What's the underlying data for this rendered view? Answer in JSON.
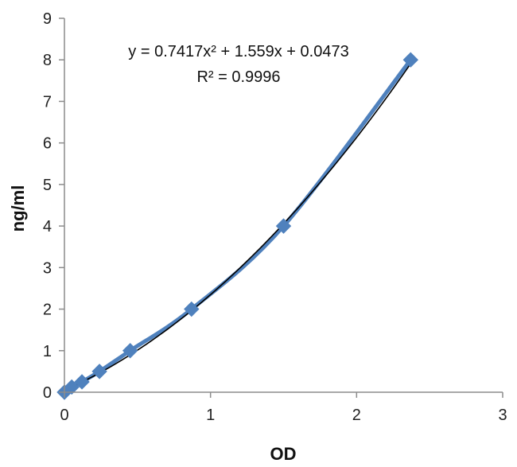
{
  "chart_data": {
    "type": "scatter",
    "xlabel": "OD",
    "ylabel": "ng/ml",
    "xlim": [
      0,
      3
    ],
    "ylim": [
      0,
      9
    ],
    "xticks": [
      0,
      1,
      2,
      3
    ],
    "yticks": [
      0,
      1,
      2,
      3,
      4,
      5,
      6,
      7,
      8,
      9
    ],
    "grid": false,
    "legend": "none",
    "series": [
      {
        "color": "#4F81BD",
        "marker": "diamond",
        "x": [
          0.0,
          0.05,
          0.12,
          0.24,
          0.45,
          0.87,
          1.5,
          2.37
        ],
        "y": [
          0.0,
          0.125,
          0.25,
          0.5,
          1.0,
          2.0,
          4.0,
          8.0
        ]
      }
    ],
    "trendline": {
      "type": "polynomial",
      "order": 2,
      "coefficients": [
        0.7417,
        1.559,
        0.0473
      ],
      "color": "#000000",
      "x_range": [
        0.0,
        2.37
      ]
    },
    "annotations": {
      "equation": "y = 0.7417x² + 1.559x + 0.0473",
      "r_squared": "R² = 0.9996"
    }
  }
}
